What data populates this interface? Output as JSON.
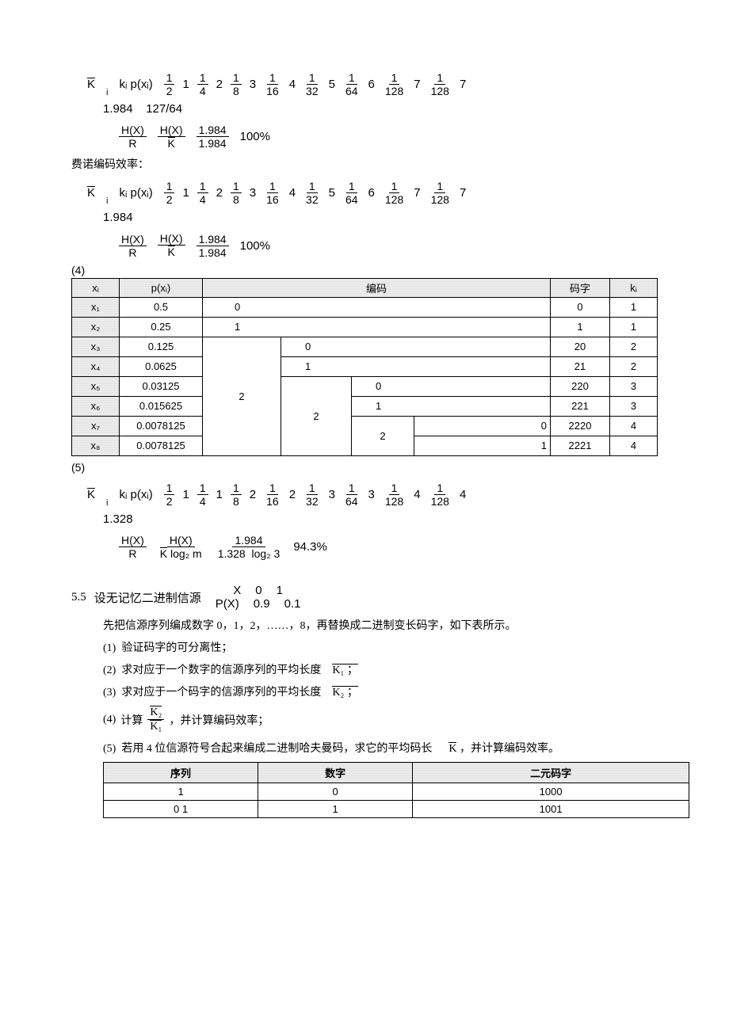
{
  "eq1": {
    "lhs": "K",
    "sum": "kᵢ p(xᵢ)",
    "terms": [
      {
        "num": "1",
        "den": "2",
        "coef": "1"
      },
      {
        "num": "1",
        "den": "4",
        "coef": "2"
      },
      {
        "num": "1",
        "den": "8",
        "coef": "3"
      },
      {
        "num": "1",
        "den": "16",
        "coef": "4"
      },
      {
        "num": "1",
        "den": "32",
        "coef": "5"
      },
      {
        "num": "1",
        "den": "64",
        "coef": "6"
      },
      {
        "num": "1",
        "den": "128",
        "coef": "7"
      },
      {
        "num": "1",
        "den": "128",
        "coef": "7"
      }
    ],
    "result": "1.984",
    "alt": "127/64"
  },
  "eff1": {
    "HX": "H(X)",
    "R": "R",
    "K": "K",
    "valnum": "1.984",
    "valden": "1.984",
    "pct": "100%"
  },
  "fano_label": "费诺编码效率：",
  "eq2": {
    "result": "1.984"
  },
  "eff2": {
    "valnum": "1.984",
    "valden": "1.984",
    "pct": "100%"
  },
  "tag4": "(4)",
  "table1": {
    "headers": {
      "xi": "xᵢ",
      "pxi": "p(xᵢ)",
      "code": "编码",
      "word": "码字",
      "ki": "kᵢ"
    },
    "rows": [
      {
        "x": "x₁",
        "p": "0.5",
        "c1": "0",
        "word": "0",
        "k": "1"
      },
      {
        "x": "x₂",
        "p": "0.25",
        "c1": "1",
        "word": "1",
        "k": "1"
      },
      {
        "x": "x₃",
        "p": "0.125",
        "c2": "0",
        "word": "20",
        "k": "2"
      },
      {
        "x": "x₄",
        "p": "0.0625",
        "c2": "1",
        "word": "21",
        "k": "2"
      },
      {
        "x": "x₅",
        "p": "0.03125",
        "c3": "0",
        "word": "220",
        "k": "3"
      },
      {
        "x": "x₆",
        "p": "0.015625",
        "c3": "1",
        "word": "221",
        "k": "3"
      },
      {
        "x": "x₇",
        "p": "0.0078125",
        "c4": "0",
        "word": "2220",
        "k": "4"
      },
      {
        "x": "x₈",
        "p": "0.0078125",
        "c4": "1",
        "word": "2221",
        "k": "4"
      }
    ],
    "merge2": "2",
    "merge3": "2",
    "merge4": "2"
  },
  "tag5": "(5)",
  "eq3": {
    "terms": [
      {
        "num": "1",
        "den": "2",
        "coef": "1"
      },
      {
        "num": "1",
        "den": "4",
        "coef": "1"
      },
      {
        "num": "1",
        "den": "8",
        "coef": "2"
      },
      {
        "num": "1",
        "den": "16",
        "coef": "2"
      },
      {
        "num": "1",
        "den": "32",
        "coef": "3"
      },
      {
        "num": "1",
        "den": "64",
        "coef": "3"
      },
      {
        "num": "1",
        "den": "128",
        "coef": "4"
      },
      {
        "num": "1",
        "den": "128",
        "coef": "4"
      }
    ],
    "result": "1.328"
  },
  "eff3": {
    "log": "log₂ m",
    "log3": "log₂ 3",
    "valnum": "1.984",
    "kval": "1.328",
    "pct": "94.3%"
  },
  "q55": {
    "num": "5.5",
    "text": "设无记忆二进制信源",
    "X": "X",
    "PX": "P(X)",
    "vals_top": [
      "0",
      "1"
    ],
    "vals_bot": [
      "0.9",
      "0.1"
    ],
    "line1": "先把信源序列编成数字    0，1，2，……，8，再替换成二进制变长码字，如下表所示。",
    "q1": "验证码字的可分离性；",
    "q2a": "求对应于一个数字的信源序列的平均长度",
    "q2b": "K₁ ；",
    "q3a": "求对应于一个码字的信源序列的平均长度",
    "q3b": "K₂ ；",
    "q4a": "计算",
    "q4num": "K₂",
    "q4den": "K₁",
    "q4b": "，并计算编码效率；",
    "q5a": "若用  4 位信源符号合起来编成二进制哈夫曼码，求它的平均码长",
    "q5b": "K",
    "q5c": "，并计算编码效率。"
  },
  "table2": {
    "headers": {
      "seq": "序列",
      "num": "数字",
      "code": "二元码字"
    },
    "rows": [
      {
        "seq": "1",
        "num": "0",
        "code": "1000"
      },
      {
        "seq": "0 1",
        "num": "1",
        "code": "1001"
      }
    ]
  }
}
